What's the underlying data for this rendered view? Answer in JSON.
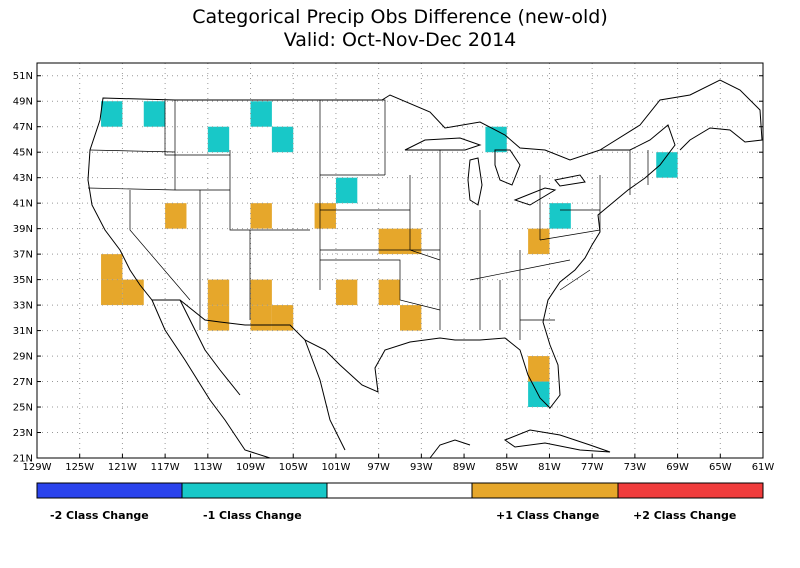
{
  "title": {
    "line1": "Categorical Precip Obs Difference (new-old)",
    "line2": "Valid: Oct-Nov-Dec 2014"
  },
  "axes": {
    "lat_ticks": [
      "51N",
      "49N",
      "47N",
      "45N",
      "43N",
      "41N",
      "39N",
      "37N",
      "35N",
      "33N",
      "31N",
      "29N",
      "27N",
      "25N",
      "23N",
      "21N"
    ],
    "lon_ticks": [
      "129W",
      "125W",
      "121W",
      "117W",
      "113W",
      "109W",
      "105W",
      "101W",
      "97W",
      "93W",
      "89W",
      "85W",
      "81W",
      "77W",
      "73W",
      "69W",
      "65W",
      "61W"
    ],
    "lat_range": [
      21,
      52
    ],
    "lon_range": [
      -129,
      -61
    ],
    "grid": "dotted"
  },
  "colors": {
    "minus2": "#2a43ec",
    "minus1": "#18c8c8",
    "zero": "#ffffff",
    "plus1": "#e6a72b",
    "plus2": "#f03c3c"
  },
  "legend": {
    "labels": [
      "-2 Class Change",
      "-1 Class Change",
      "+1 Class Change",
      "+2 Class Change"
    ]
  },
  "cells": {
    "minus1": [
      [
        -122,
        48
      ],
      [
        -118,
        48
      ],
      [
        -112,
        46
      ],
      [
        -108,
        48
      ],
      [
        -106,
        46
      ],
      [
        -100,
        42
      ],
      [
        -86,
        46
      ],
      [
        -80,
        40
      ],
      [
        -70,
        44
      ],
      [
        -82,
        26
      ]
    ],
    "plus1": [
      [
        -116,
        40
      ],
      [
        -108,
        40
      ],
      [
        -102,
        40
      ],
      [
        -122,
        36
      ],
      [
        -122,
        34
      ],
      [
        -120,
        34
      ],
      [
        -112,
        34
      ],
      [
        -112,
        32
      ],
      [
        -108,
        34
      ],
      [
        -108,
        32
      ],
      [
        -106,
        32
      ],
      [
        -96,
        38
      ],
      [
        -94,
        38
      ],
      [
        -100,
        34
      ],
      [
        -96,
        34
      ],
      [
        -94,
        32
      ],
      [
        -82,
        38
      ],
      [
        -82,
        28
      ]
    ]
  },
  "labels_on_map": {}
}
